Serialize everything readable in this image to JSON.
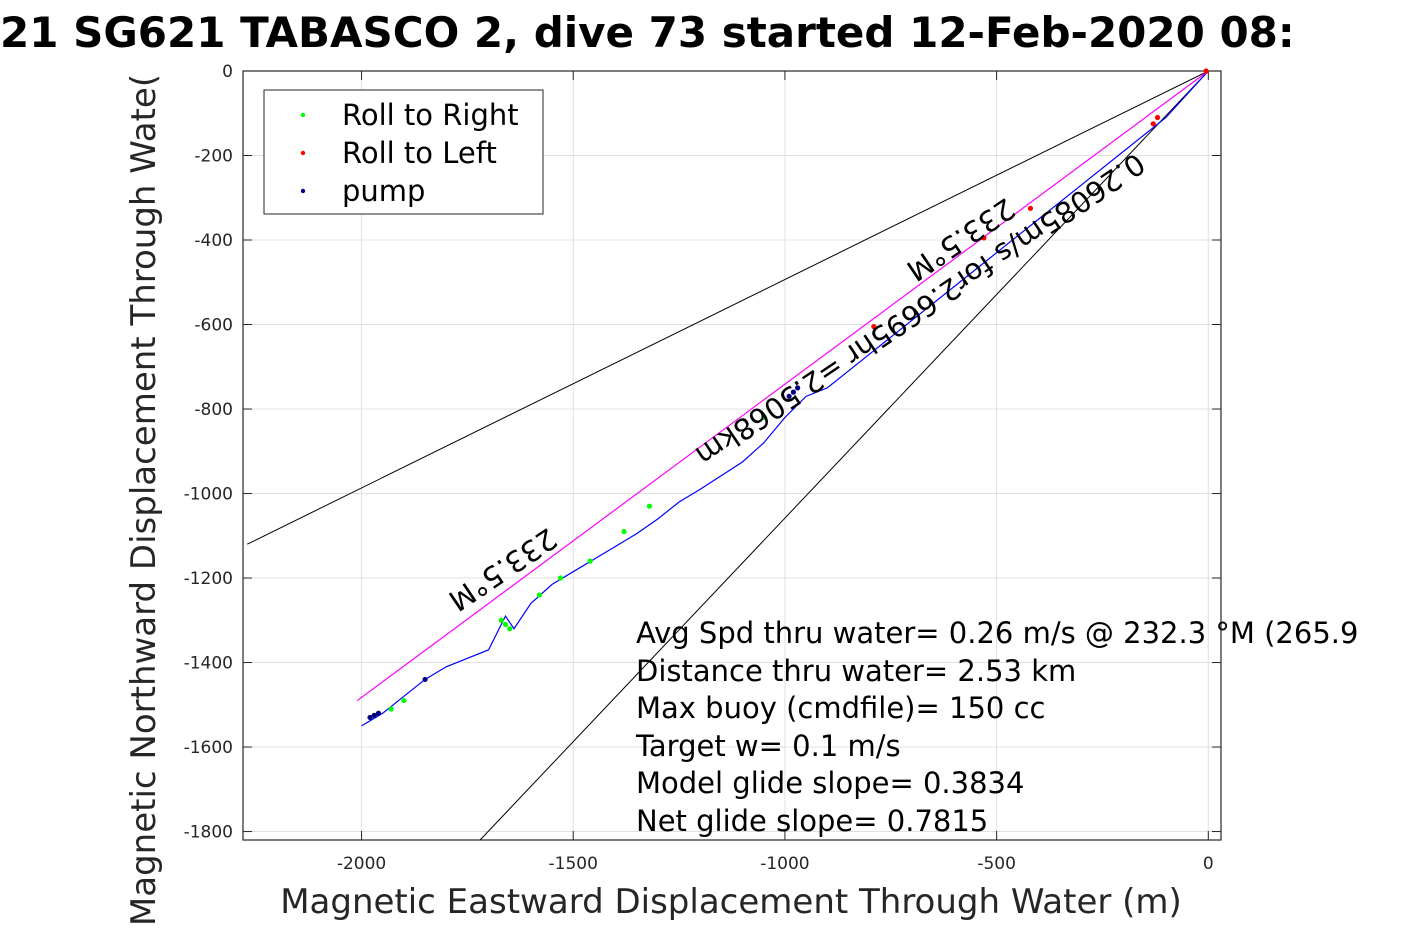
{
  "chart_data": {
    "type": "line",
    "title": "21 SG621 TABASCO 2, dive 73 started 12-Feb-2020 08:",
    "xlabel": "Magnetic Eastward Displacement Through Water (m)",
    "ylabel": "Magnetic Northward Displacement Through Wate(",
    "xlim": [
      -2280,
      30
    ],
    "ylim": [
      -1820,
      0
    ],
    "xticks": [
      -2000,
      -1500,
      -1000,
      -500,
      0
    ],
    "yticks": [
      0,
      -200,
      -400,
      -600,
      -800,
      -1000,
      -1200,
      -1400,
      -1600,
      -1800
    ],
    "grid": true,
    "legend": {
      "location": "top-left",
      "entries": [
        "Roll to Right",
        "Roll to Left",
        "pump"
      ]
    },
    "colors": {
      "roll_right": "#00ff00",
      "roll_left": "#ff0000",
      "pump": "#000080",
      "track": "#0000ff",
      "heading_line": "#ff00ff",
      "reference": "#000000"
    },
    "series": [
      {
        "name": "track",
        "x": [
          0,
          -100,
          -200,
          -300,
          -400,
          -500,
          -600,
          -700,
          -800,
          -900,
          -950,
          -1000,
          -1050,
          -1100,
          -1200,
          -1250,
          -1300,
          -1350,
          -1400,
          -1450,
          -1500,
          -1550,
          -1600,
          -1640,
          -1660,
          -1700,
          -1750,
          -1800,
          -1850,
          -1900,
          -1950,
          -2000
        ],
        "y": [
          0,
          -110,
          -190,
          -270,
          -350,
          -430,
          -510,
          -590,
          -670,
          -750,
          -770,
          -820,
          -880,
          -925,
          -990,
          -1020,
          -1060,
          -1095,
          -1125,
          -1155,
          -1185,
          -1215,
          -1260,
          -1320,
          -1290,
          -1370,
          -1390,
          -1410,
          -1440,
          -1480,
          -1520,
          -1550
        ]
      },
      {
        "name": "heading",
        "x": [
          0,
          -2010
        ],
        "y": [
          0,
          -1490
        ]
      }
    ],
    "reference_lines": [
      {
        "x": [
          0,
          -2270
        ],
        "y": [
          0,
          -1120
        ]
      },
      {
        "x": [
          0,
          -1720
        ],
        "y": [
          0,
          -1820
        ]
      }
    ],
    "markers": {
      "roll_right": {
        "x": [
          -1320,
          -1380,
          -1460,
          -1530,
          -1580,
          -1650,
          -1670,
          -1660,
          -1900,
          -1930,
          -1050
        ],
        "y": [
          -1030,
          -1090,
          -1160,
          -1200,
          -1240,
          -1320,
          -1300,
          -1310,
          -1490,
          -1510,
          -820
        ]
      },
      "roll_left": {
        "x": [
          -5,
          -120,
          -130,
          -420,
          -530,
          -790
        ],
        "y": [
          0,
          -110,
          -125,
          -325,
          -395,
          -605
        ]
      },
      "pump": {
        "x": [
          -970,
          -980,
          -990,
          -1850,
          -1980,
          -1970,
          -1960
        ],
        "y": [
          -750,
          -760,
          -770,
          -1440,
          -1530,
          -1525,
          -1520
        ]
      }
    },
    "annotations": {
      "heading_upper": "233.5°M",
      "heading_lower": "233.5°M",
      "speed_line": "0.26085m/s for2.6695hr =2.5068km",
      "stats": [
        "Avg Spd thru water=  0.26 m/s @ 232.3 °M (265.9",
        "Distance thru water=  2.53 km",
        "Max buoy (cmdfile)= 150 cc",
        "Target w= 0.1 m/s",
        "Model glide slope= 0.3834",
        "Net glide slope= 0.7815"
      ]
    }
  }
}
